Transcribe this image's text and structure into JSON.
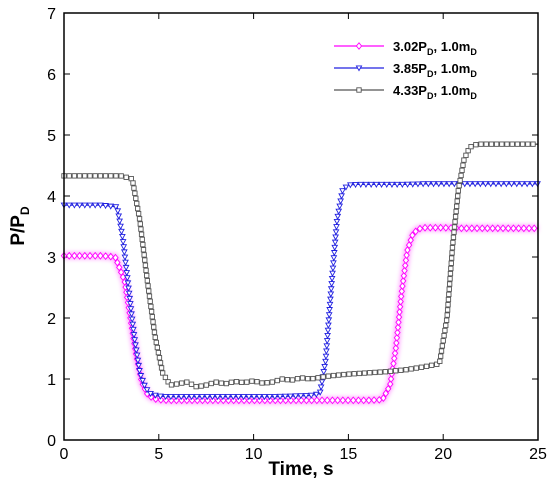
{
  "chart_data": {
    "type": "line",
    "xlabel": "Time, s",
    "ylabel_main": "P/P",
    "ylabel_sub": "D",
    "xlim": [
      0,
      25
    ],
    "ylim": [
      0,
      7
    ],
    "xticks": [
      0,
      5,
      10,
      15,
      20,
      25
    ],
    "yticks": [
      0,
      1,
      2,
      3,
      4,
      5,
      6,
      7
    ],
    "legend_position": "top-right",
    "series": [
      {
        "name": "3.02P_D, 1.0m_D",
        "legend": {
          "a": "3.02P",
          "a_sub": "D",
          "b": ", 1.0m",
          "b_sub": "D"
        },
        "color": "#ff00ff",
        "marker": "diamond",
        "glow": true,
        "x": [
          0,
          1,
          2,
          2.7,
          3.2,
          3.5,
          3.8,
          4.1,
          4.4,
          4.7,
          5,
          5.5,
          6,
          7,
          8,
          9,
          10,
          11,
          12,
          13,
          14,
          15,
          16,
          16.8,
          17.2,
          17.5,
          17.8,
          18.1,
          18.4,
          18.7,
          19,
          20,
          21,
          22,
          23,
          24,
          25
        ],
        "y": [
          3.02,
          3.02,
          3.02,
          3.0,
          2.6,
          2.0,
          1.4,
          0.95,
          0.75,
          0.68,
          0.66,
          0.65,
          0.65,
          0.65,
          0.65,
          0.65,
          0.65,
          0.65,
          0.65,
          0.65,
          0.65,
          0.65,
          0.65,
          0.66,
          0.9,
          1.5,
          2.4,
          3.1,
          3.38,
          3.46,
          3.48,
          3.48,
          3.47,
          3.47,
          3.47,
          3.47,
          3.47
        ]
      },
      {
        "name": "3.85P_D, 1.0m_D",
        "legend": {
          "a": "3.85P",
          "a_sub": "D",
          "b": ", 1.0m",
          "b_sub": "D"
        },
        "color": "#2020e0",
        "marker": "triangle-down",
        "glow": false,
        "x": [
          0,
          1,
          2,
          2.8,
          3.1,
          3.4,
          3.7,
          4.0,
          4.3,
          4.6,
          5,
          5.5,
          6,
          7,
          8,
          9,
          10,
          11,
          12,
          13,
          13.5,
          13.8,
          14.1,
          14.4,
          14.7,
          15,
          15.5,
          16,
          17,
          18,
          19,
          20,
          21,
          22,
          23,
          24,
          25
        ],
        "y": [
          3.85,
          3.85,
          3.85,
          3.82,
          3.3,
          2.5,
          1.7,
          1.1,
          0.85,
          0.75,
          0.72,
          0.71,
          0.71,
          0.71,
          0.71,
          0.71,
          0.71,
          0.71,
          0.72,
          0.73,
          0.76,
          1.3,
          2.5,
          3.6,
          4.1,
          4.18,
          4.19,
          4.19,
          4.19,
          4.19,
          4.2,
          4.2,
          4.2,
          4.2,
          4.2,
          4.2,
          4.2
        ]
      },
      {
        "name": "4.33P_D, 1.0m_D",
        "legend": {
          "a": "4.33P",
          "a_sub": "D",
          "b": ", 1.0m",
          "b_sub": "D"
        },
        "color": "#555555",
        "marker": "square",
        "glow": false,
        "x": [
          0,
          1,
          2,
          3,
          3.6,
          4.0,
          4.4,
          4.8,
          5.2,
          5.6,
          6,
          6.5,
          7,
          7.5,
          8,
          8.5,
          9,
          9.5,
          10,
          10.5,
          11,
          11.5,
          12,
          12.5,
          13,
          14,
          15,
          16,
          17,
          18,
          19,
          19.8,
          20.2,
          20.5,
          20.8,
          21.1,
          21.4,
          21.7,
          22,
          23,
          24,
          25
        ],
        "y": [
          4.33,
          4.33,
          4.33,
          4.33,
          4.28,
          3.6,
          2.6,
          1.7,
          1.1,
          0.9,
          0.92,
          0.95,
          0.87,
          0.9,
          0.95,
          0.92,
          0.96,
          0.94,
          0.97,
          0.93,
          0.95,
          1.0,
          0.98,
          1.02,
          1.0,
          1.05,
          1.08,
          1.1,
          1.12,
          1.15,
          1.2,
          1.25,
          2.0,
          3.2,
          4.1,
          4.6,
          4.8,
          4.84,
          4.85,
          4.85,
          4.85,
          4.85
        ]
      }
    ]
  }
}
